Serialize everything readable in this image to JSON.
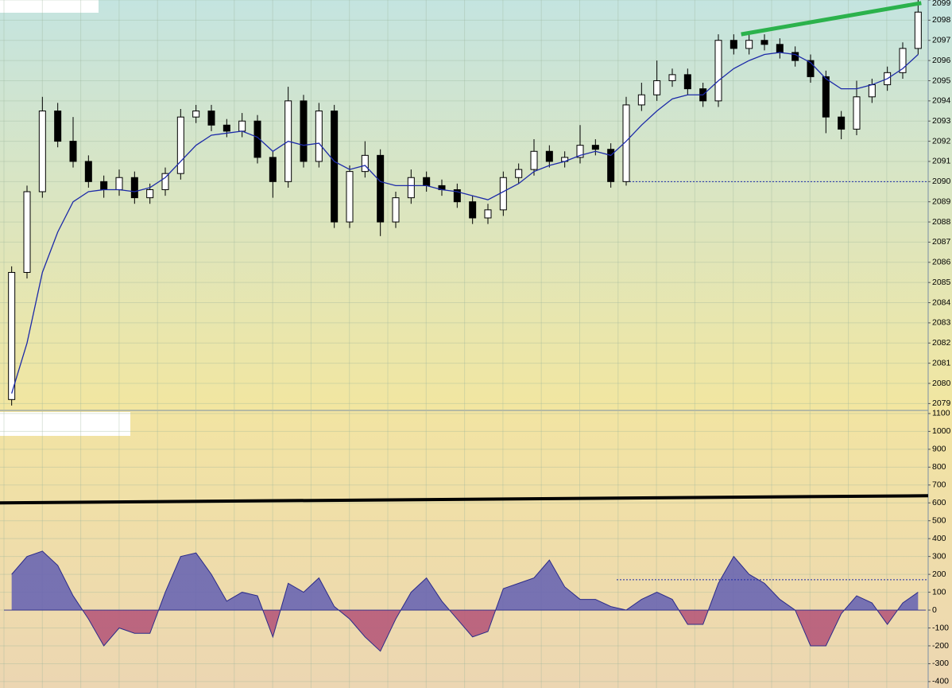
{
  "chart_data": [
    {
      "type": "candlestick",
      "ohlc": [
        [
          2079.2,
          2085.8,
          2078.9,
          2085.5
        ],
        [
          2085.5,
          2089.8,
          2085.2,
          2089.5
        ],
        [
          2089.5,
          2094.2,
          2089.2,
          2093.5
        ],
        [
          2093.5,
          2093.9,
          2091.7,
          2092
        ],
        [
          2092,
          2093.2,
          2090.7,
          2091
        ],
        [
          2091,
          2091.3,
          2089.7,
          2090
        ],
        [
          2090,
          2090.3,
          2089.2,
          2089.6
        ],
        [
          2089.6,
          2090.6,
          2089.3,
          2090.2
        ],
        [
          2090.2,
          2090.5,
          2088.9,
          2089.2
        ],
        [
          2089.2,
          2089.9,
          2088.9,
          2089.6
        ],
        [
          2089.6,
          2090.7,
          2089.3,
          2090.4
        ],
        [
          2090.4,
          2093.6,
          2090.1,
          2093.2
        ],
        [
          2093.2,
          2093.8,
          2092.9,
          2093.5
        ],
        [
          2093.5,
          2093.8,
          2092.5,
          2092.8
        ],
        [
          2092.8,
          2093.1,
          2092.2,
          2092.5
        ],
        [
          2092.5,
          2093.4,
          2092.2,
          2093
        ],
        [
          2093,
          2093.3,
          2090.9,
          2091.2
        ],
        [
          2091.2,
          2091.5,
          2089.2,
          2090
        ],
        [
          2090,
          2094.7,
          2089.7,
          2094
        ],
        [
          2094,
          2094.3,
          2090.7,
          2091
        ],
        [
          2091,
          2093.9,
          2090.7,
          2093.5
        ],
        [
          2093.5,
          2093.8,
          2087.7,
          2088
        ],
        [
          2088,
          2090.8,
          2087.7,
          2090.5
        ],
        [
          2090.5,
          2092,
          2090.2,
          2091.3
        ],
        [
          2091.3,
          2091.6,
          2087.3,
          2088
        ],
        [
          2088,
          2089.5,
          2087.7,
          2089.2
        ],
        [
          2089.2,
          2090.6,
          2088.9,
          2090.2
        ],
        [
          2090.2,
          2090.5,
          2089.5,
          2089.8
        ],
        [
          2089.8,
          2090.1,
          2089.3,
          2089.6
        ],
        [
          2089.6,
          2089.9,
          2088.7,
          2089
        ],
        [
          2089,
          2089.3,
          2087.9,
          2088.2
        ],
        [
          2088.2,
          2088.9,
          2087.9,
          2088.6
        ],
        [
          2088.6,
          2090.5,
          2088.3,
          2090.2
        ],
        [
          2090.2,
          2090.9,
          2089.9,
          2090.6
        ],
        [
          2090.6,
          2092.1,
          2090.3,
          2091.5
        ],
        [
          2091.5,
          2091.8,
          2090.7,
          2091
        ],
        [
          2091,
          2091.5,
          2090.7,
          2091.2
        ],
        [
          2091.2,
          2092.8,
          2090.9,
          2091.8
        ],
        [
          2091.8,
          2092.1,
          2091.3,
          2091.6
        ],
        [
          2091.6,
          2091.9,
          2089.7,
          2090
        ],
        [
          2090,
          2094.2,
          2089.8,
          2093.8
        ],
        [
          2093.8,
          2094.9,
          2093.5,
          2094.3
        ],
        [
          2094.3,
          2096,
          2094,
          2095
        ],
        [
          2095,
          2095.6,
          2094.7,
          2095.3
        ],
        [
          2095.3,
          2095.6,
          2094.3,
          2094.6
        ],
        [
          2094.6,
          2094.9,
          2093.7,
          2094
        ],
        [
          2094,
          2097.3,
          2093.7,
          2097
        ],
        [
          2097,
          2097.3,
          2096.3,
          2096.6
        ],
        [
          2096.6,
          2097.4,
          2096.3,
          2097
        ],
        [
          2097,
          2097.3,
          2096.5,
          2096.8
        ],
        [
          2096.8,
          2097.1,
          2096.1,
          2096.4
        ],
        [
          2096.4,
          2096.7,
          2095.7,
          2096
        ],
        [
          2096,
          2096.3,
          2094.9,
          2095.2
        ],
        [
          2095.2,
          2095.5,
          2092.4,
          2093.2
        ],
        [
          2093.2,
          2093.5,
          2092.1,
          2092.6
        ],
        [
          2092.6,
          2095,
          2092.3,
          2094.2
        ],
        [
          2094.2,
          2095.1,
          2093.9,
          2094.8
        ],
        [
          2094.8,
          2095.7,
          2094.5,
          2095.4
        ],
        [
          2095.4,
          2096.9,
          2095.1,
          2096.6
        ],
        [
          2096.6,
          2099,
          2096.3,
          2098.4
        ]
      ],
      "moving_average": {
        "color": "#1c2aa8",
        "values": [
          2079.5,
          2082,
          2085.5,
          2087.5,
          2089,
          2089.5,
          2089.6,
          2089.6,
          2089.5,
          2089.7,
          2090.2,
          2091,
          2091.8,
          2092.3,
          2092.4,
          2092.5,
          2092.2,
          2091.5,
          2092,
          2091.8,
          2091.9,
          2091,
          2090.6,
          2090.8,
          2090,
          2089.8,
          2089.8,
          2089.8,
          2089.6,
          2089.5,
          2089.3,
          2089.1,
          2089.5,
          2089.9,
          2090.5,
          2090.8,
          2091,
          2091.3,
          2091.5,
          2091.3,
          2092,
          2092.8,
          2093.5,
          2094.1,
          2094.3,
          2094.3,
          2095,
          2095.6,
          2096,
          2096.3,
          2096.4,
          2096.3,
          2095.9,
          2095.1,
          2094.6,
          2094.6,
          2094.8,
          2095.1,
          2095.6,
          2096.3
        ]
      },
      "reference_line": {
        "value": 2090,
        "color": "#1c2aa8"
      },
      "trend_line": {
        "values": [
          2097.3,
          2098.85
        ],
        "color": "#2bb24c"
      },
      "ylim": [
        2078.7,
        2099
      ],
      "yticks": [
        2079,
        2080,
        2081,
        2082,
        2083,
        2084,
        2085,
        2086,
        2087,
        2088,
        2089,
        2090,
        2091,
        2092,
        2093,
        2094,
        2095,
        2096,
        2097,
        2098,
        2099
      ],
      "grid": true
    },
    {
      "type": "area",
      "values": [
        200,
        300,
        330,
        250,
        80,
        -50,
        -200,
        -100,
        -130,
        -130,
        100,
        300,
        320,
        200,
        50,
        100,
        80,
        -150,
        150,
        100,
        180,
        20,
        -50,
        -150,
        -230,
        -50,
        100,
        180,
        50,
        -50,
        -150,
        -120,
        120,
        150,
        180,
        280,
        130,
        60,
        60,
        20,
        0,
        60,
        100,
        60,
        -80,
        -80,
        150,
        300,
        200,
        150,
        60,
        0,
        -200,
        -200,
        -20,
        80,
        40,
        -80,
        40,
        100
      ],
      "positive_color": "#6a66b2",
      "negative_color": "#b65a7a",
      "reference_line": {
        "value": 170,
        "color": "#1c2aa8"
      },
      "level_line": {
        "values": [
          600,
          640
        ],
        "color": "#000000"
      },
      "ylim": [
        -436,
        1113
      ],
      "yticks": [
        -400,
        -300,
        -200,
        -100,
        0,
        100,
        200,
        300,
        400,
        500,
        600,
        700,
        800,
        900,
        1000,
        1100
      ],
      "grid": true
    }
  ]
}
